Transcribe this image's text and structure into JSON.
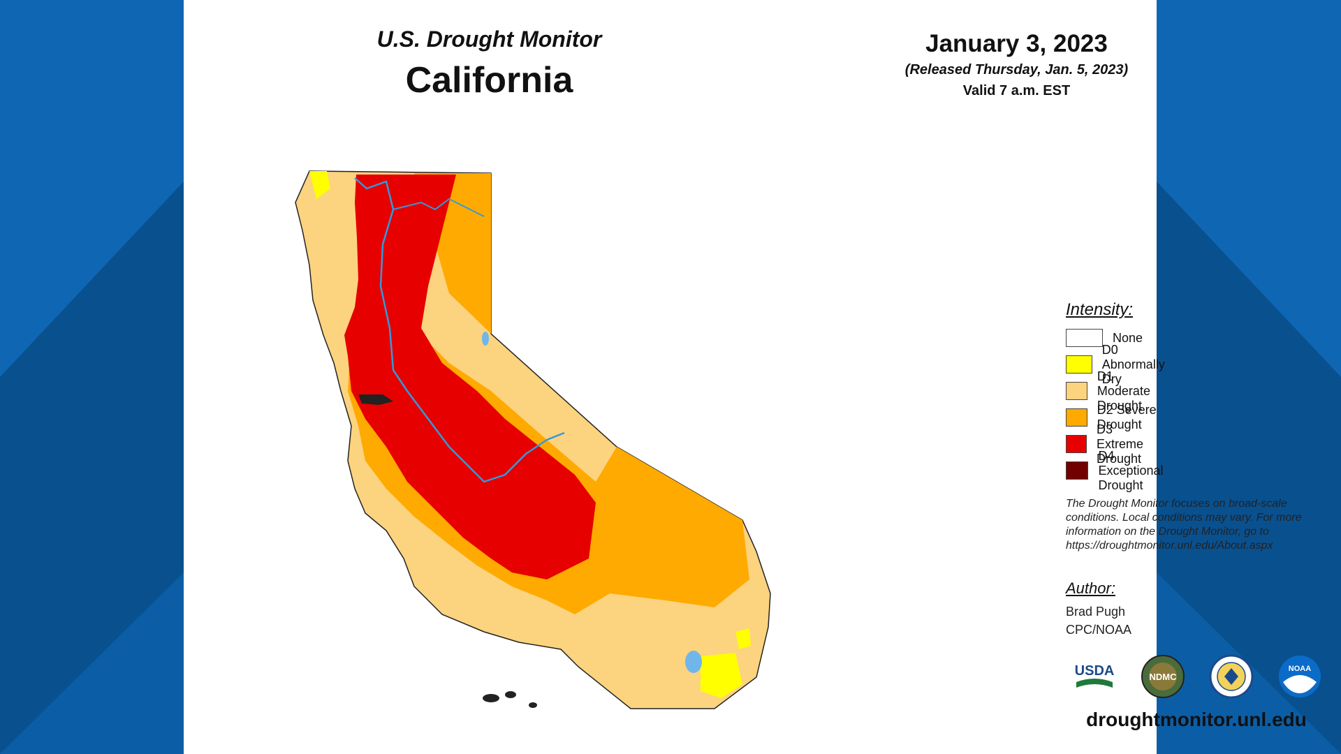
{
  "header": {
    "monitor_title": "U.S. Drought Monitor",
    "state": "California",
    "date": "January 3, 2023",
    "released": "(Released Thursday, Jan. 5, 2023)",
    "valid": "Valid 7 a.m. EST"
  },
  "legend": {
    "title": "Intensity:",
    "items": [
      {
        "label": "None",
        "color": "#ffffff"
      },
      {
        "label": "D0 Abnormally Dry",
        "color": "#ffff00"
      },
      {
        "label": "D1 Moderate Drought",
        "color": "#fcd37f"
      },
      {
        "label": "D2 Severe Drought",
        "color": "#ffaa00"
      },
      {
        "label": "D3 Extreme Drought",
        "color": "#e60000"
      },
      {
        "label": "D4 Exceptional Drought",
        "color": "#730000"
      }
    ]
  },
  "note": "The Drought Monitor focuses on broad-scale conditions. Local conditions may vary. For more information on the Drought Monitor, go to https://droughtmonitor.unl.edu/About.aspx",
  "author": {
    "title": "Author:",
    "name": "Brad Pugh",
    "org": "CPC/NOAA"
  },
  "logos": {
    "usda": "USDA",
    "ndmc": "NDMC",
    "doc": "doc-seal",
    "noaa": "NOAA"
  },
  "website": "droughtmonitor.unl.edu"
}
